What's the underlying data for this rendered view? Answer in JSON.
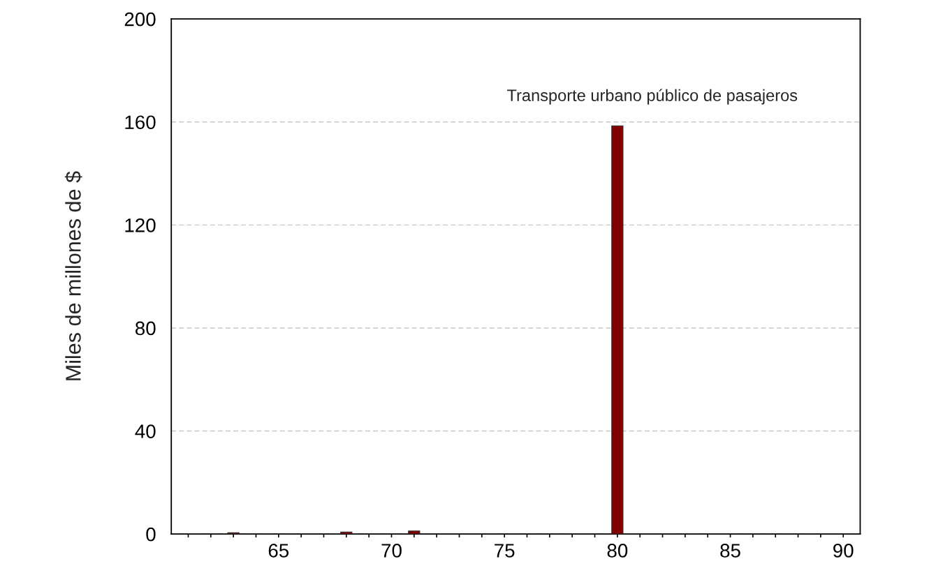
{
  "chart_data": {
    "type": "bar",
    "ylabel": "Miles de millones de $",
    "x": [
      63,
      68,
      71,
      80
    ],
    "values": [
      0.5,
      0.8,
      1.2,
      158.5
    ],
    "color": "#800000",
    "xlim": [
      60.25,
      90.75
    ],
    "xticks": [
      {
        "value": 61,
        "label": null
      },
      {
        "value": 62,
        "label": null
      },
      {
        "value": 63,
        "label": null
      },
      {
        "value": 64,
        "label": null
      },
      65,
      {
        "value": 66,
        "label": null
      },
      {
        "value": 67,
        "label": null
      },
      {
        "value": 68,
        "label": null
      },
      {
        "value": 69,
        "label": null
      },
      70,
      {
        "value": 71,
        "label": null
      },
      {
        "value": 72,
        "label": null
      },
      {
        "value": 73,
        "label": null
      },
      {
        "value": 74,
        "label": null
      },
      75,
      {
        "value": 76,
        "label": null
      },
      {
        "value": 77,
        "label": null
      },
      {
        "value": 78,
        "label": null
      },
      {
        "value": 79,
        "label": null
      },
      80,
      {
        "value": 81,
        "label": null
      },
      {
        "value": 82,
        "label": null
      },
      {
        "value": 83,
        "label": null
      },
      {
        "value": 84,
        "label": null
      },
      85,
      {
        "value": 86,
        "label": null
      },
      {
        "value": 87,
        "label": null
      },
      {
        "value": 88,
        "label": null
      },
      {
        "value": 89,
        "label": null
      },
      90
    ],
    "ylim": [
      0,
      200
    ],
    "yticks": [
      0,
      40,
      80,
      120,
      160,
      200
    ],
    "grid": "y",
    "annotations": [
      {
        "text": "Transporte urbano público de pasajeros",
        "x": 80,
        "y": 158.5
      }
    ]
  }
}
